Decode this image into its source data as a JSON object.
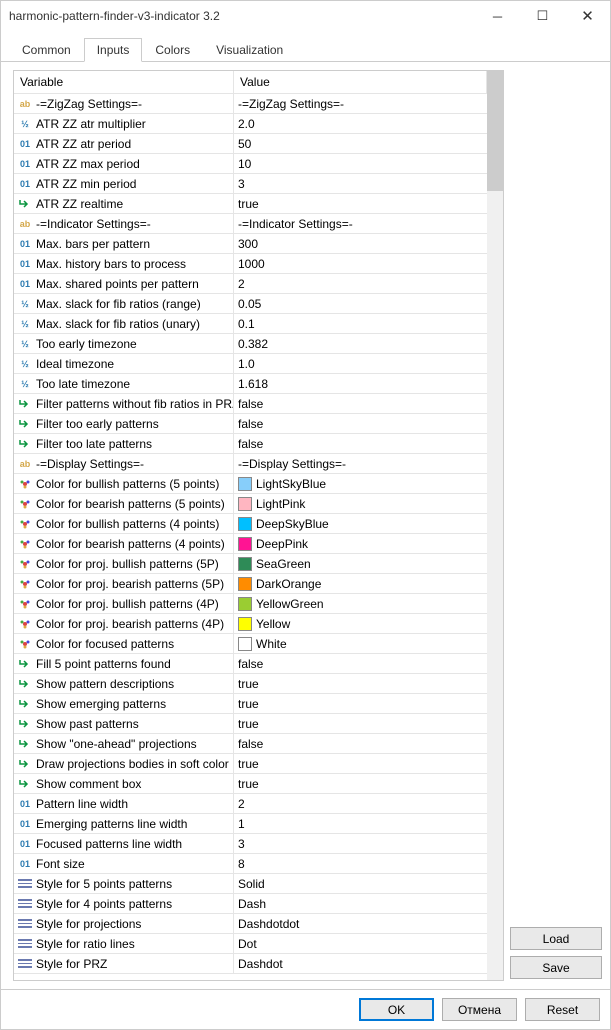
{
  "window": {
    "title": "harmonic-pattern-finder-v3-indicator 3.2"
  },
  "tabs": {
    "items": [
      {
        "label": "Common",
        "active": false
      },
      {
        "label": "Inputs",
        "active": true
      },
      {
        "label": "Colors",
        "active": false
      },
      {
        "label": "Visualization",
        "active": false
      }
    ]
  },
  "table": {
    "header": {
      "variable": "Variable",
      "value": "Value"
    },
    "rows": [
      {
        "type": "ab",
        "name": "-=ZigZag Settings=-",
        "value": "-=ZigZag Settings=-"
      },
      {
        "type": "frac",
        "name": "ATR ZZ atr multiplier",
        "value": "2.0"
      },
      {
        "type": "01",
        "name": "ATR ZZ atr period",
        "value": "50"
      },
      {
        "type": "01",
        "name": "ATR ZZ max period",
        "value": "10"
      },
      {
        "type": "01",
        "name": "ATR ZZ min period",
        "value": "3"
      },
      {
        "type": "bool",
        "name": "ATR ZZ realtime",
        "value": "true"
      },
      {
        "type": "ab",
        "name": "-=Indicator Settings=-",
        "value": "-=Indicator Settings=-"
      },
      {
        "type": "01",
        "name": "Max. bars per pattern",
        "value": "300"
      },
      {
        "type": "01",
        "name": "Max. history bars to process",
        "value": "1000"
      },
      {
        "type": "01",
        "name": "Max. shared points per pattern",
        "value": "2"
      },
      {
        "type": "frac",
        "name": "Max. slack for fib ratios (range)",
        "value": "0.05"
      },
      {
        "type": "frac",
        "name": "Max. slack for fib ratios (unary)",
        "value": "0.1"
      },
      {
        "type": "frac",
        "name": "Too early timezone",
        "value": "0.382"
      },
      {
        "type": "frac",
        "name": "Ideal timezone",
        "value": "1.0"
      },
      {
        "type": "frac",
        "name": "Too late timezone",
        "value": "1.618"
      },
      {
        "type": "bool",
        "name": "Filter patterns without fib ratios in PRZ",
        "value": "false"
      },
      {
        "type": "bool",
        "name": "Filter too early patterns",
        "value": "false"
      },
      {
        "type": "bool",
        "name": "Filter too late patterns",
        "value": "false"
      },
      {
        "type": "ab",
        "name": "-=Display Settings=-",
        "value": "-=Display Settings=-"
      },
      {
        "type": "color",
        "name": "Color for bullish patterns (5 points)",
        "value": "LightSkyBlue",
        "swatch": "#87cefa"
      },
      {
        "type": "color",
        "name": "Color for bearish patterns (5 points)",
        "value": "LightPink",
        "swatch": "#ffb6c1"
      },
      {
        "type": "color",
        "name": "Color for bullish patterns (4 points)",
        "value": "DeepSkyBlue",
        "swatch": "#00bfff"
      },
      {
        "type": "color",
        "name": "Color for bearish patterns (4 points)",
        "value": "DeepPink",
        "swatch": "#ff1493"
      },
      {
        "type": "color",
        "name": "Color for proj. bullish patterns (5P)",
        "value": "SeaGreen",
        "swatch": "#2e8b57"
      },
      {
        "type": "color",
        "name": "Color for proj. bearish patterns (5P)",
        "value": "DarkOrange",
        "swatch": "#ff8c00"
      },
      {
        "type": "color",
        "name": "Color for proj. bullish patterns (4P)",
        "value": "YellowGreen",
        "swatch": "#9acd32"
      },
      {
        "type": "color",
        "name": "Color for proj. bearish patterns (4P)",
        "value": "Yellow",
        "swatch": "#ffff00"
      },
      {
        "type": "color",
        "name": "Color for focused patterns",
        "value": "White",
        "swatch": "#ffffff"
      },
      {
        "type": "bool",
        "name": "Fill 5 point patterns found",
        "value": "false"
      },
      {
        "type": "bool",
        "name": "Show pattern descriptions",
        "value": "true"
      },
      {
        "type": "bool",
        "name": "Show emerging patterns",
        "value": "true"
      },
      {
        "type": "bool",
        "name": "Show past patterns",
        "value": "true"
      },
      {
        "type": "bool",
        "name": "Show \"one-ahead\" projections",
        "value": "false"
      },
      {
        "type": "bool",
        "name": "Draw projections bodies in soft color",
        "value": "true"
      },
      {
        "type": "bool",
        "name": "Show comment box",
        "value": "true"
      },
      {
        "type": "01",
        "name": "Pattern line width",
        "value": "2"
      },
      {
        "type": "01",
        "name": "Emerging patterns line width",
        "value": "1"
      },
      {
        "type": "01",
        "name": "Focused patterns line width",
        "value": "3"
      },
      {
        "type": "01",
        "name": "Font size",
        "value": "8"
      },
      {
        "type": "style",
        "name": "Style for 5 points patterns",
        "value": "Solid"
      },
      {
        "type": "style",
        "name": "Style for 4 points patterns",
        "value": "Dash"
      },
      {
        "type": "style",
        "name": "Style for projections",
        "value": "Dashdotdot"
      },
      {
        "type": "style",
        "name": "Style for ratio lines",
        "value": "Dot"
      },
      {
        "type": "style",
        "name": "Style for PRZ",
        "value": "Dashdot"
      }
    ]
  },
  "sideButtons": {
    "load": "Load",
    "save": "Save"
  },
  "bottomButtons": {
    "ok": "OK",
    "cancel": "Отмена",
    "reset": "Reset"
  },
  "typeIcons": {
    "ab": "ab",
    "frac": "½",
    "01": "01",
    "bool": "↳",
    "color": "❀",
    "style": "≡"
  },
  "colors": {
    "windowBg": "#ffffff",
    "border": "#cccccc",
    "rowBorder": "#e5e5e5",
    "primaryBorder": "#0078d7",
    "buttonBg": "#e9e9e9",
    "scrollThumb": "#cccccc"
  }
}
